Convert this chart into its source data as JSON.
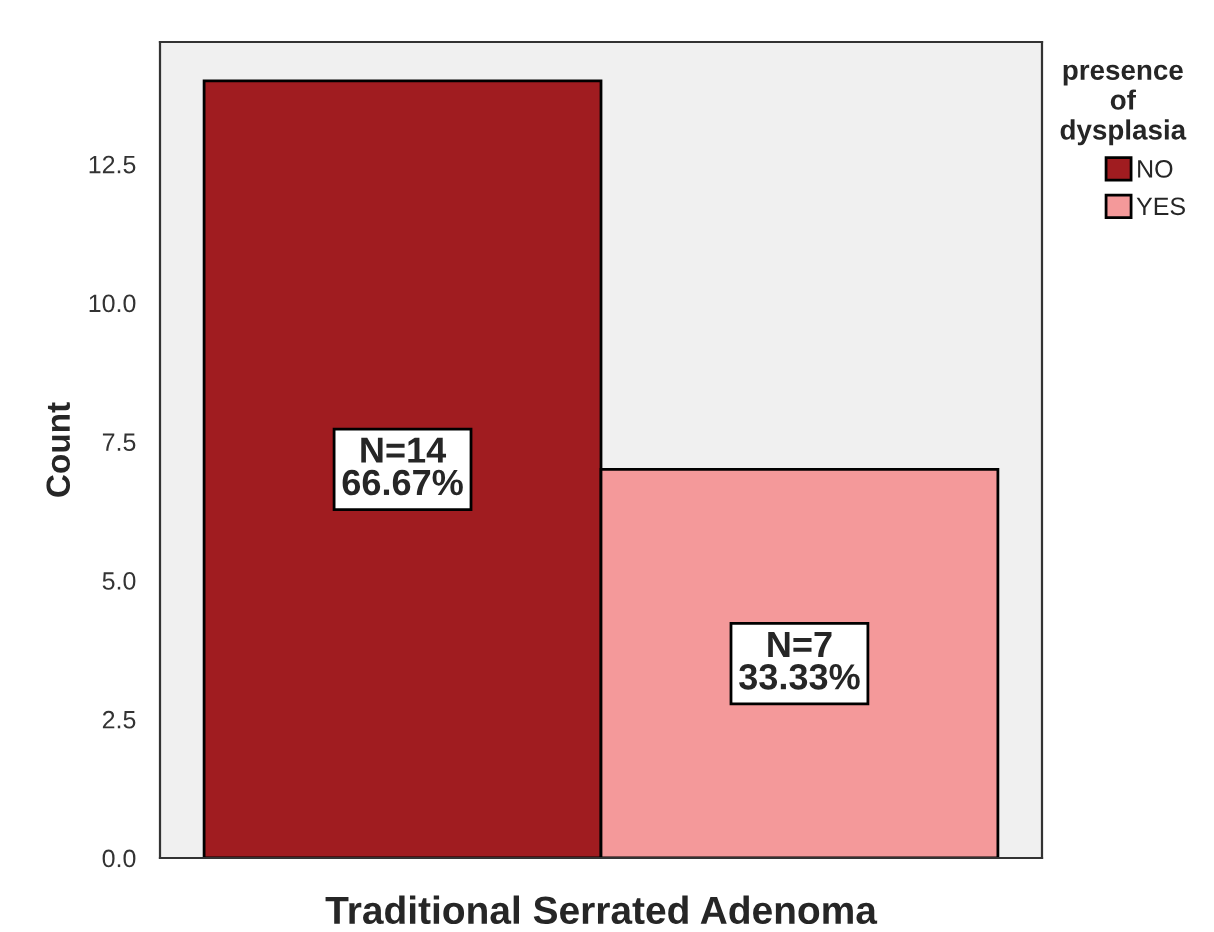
{
  "chart_data": {
    "type": "bar",
    "xlabel": "Traditional Serrated Adenoma",
    "ylabel": "Count",
    "legend_title": "presence of dysplasia",
    "categories": [
      null
    ],
    "series": [
      {
        "name": "NO",
        "color": "#a01c20",
        "values": [
          14
        ],
        "value_labels": [
          "N=14\n66.67%"
        ]
      },
      {
        "name": "YES",
        "color": "#f4999a",
        "values": [
          7
        ],
        "value_labels": [
          "N=7\n33.33%"
        ]
      }
    ],
    "ylim": [
      0,
      14.7
    ],
    "yticks": [
      {
        "value": 0,
        "label": "0.0"
      },
      {
        "value": 2.5,
        "label": "2.5"
      },
      {
        "value": 5,
        "label": "5.0"
      },
      {
        "value": 7.5,
        "label": "7.5"
      },
      {
        "value": 10,
        "label": "10.0"
      },
      {
        "value": 12.5,
        "label": "12.5"
      }
    ],
    "grid": false,
    "legend": "top right"
  }
}
